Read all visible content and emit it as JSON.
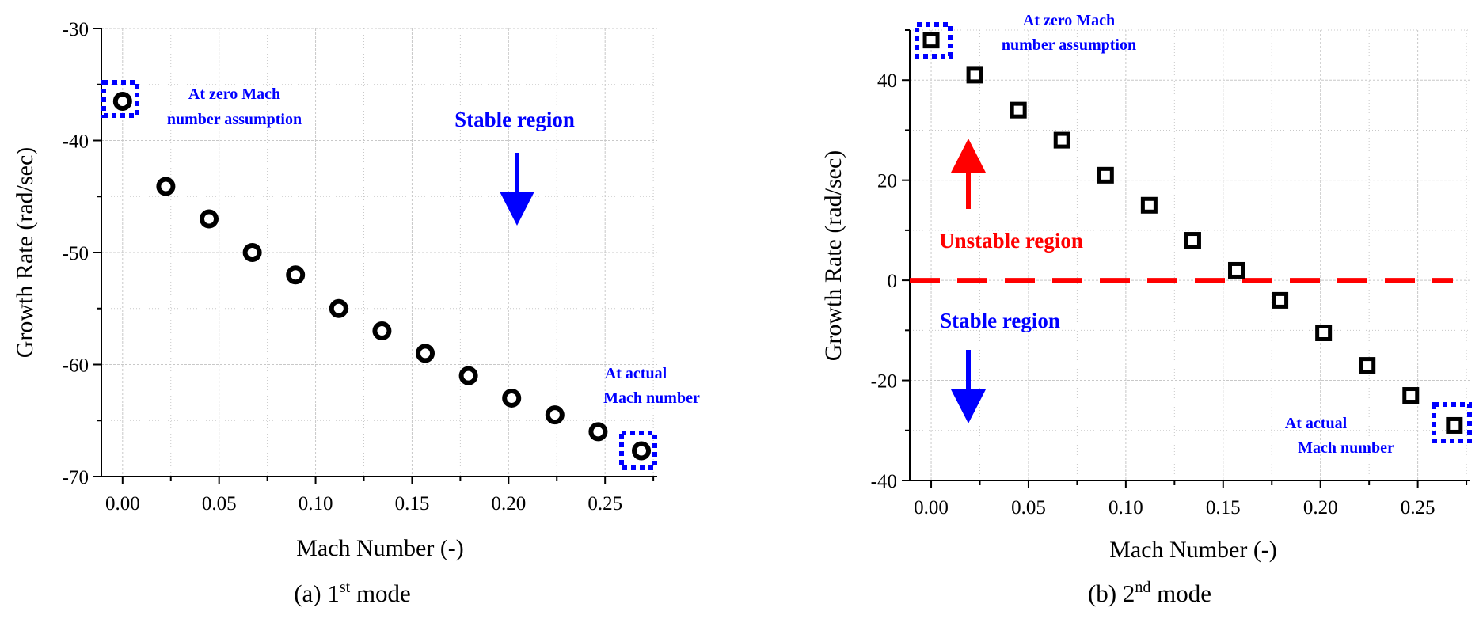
{
  "chart_data": [
    {
      "type": "scatter",
      "caption_prefix": "(a) 1",
      "caption_sup": "st",
      "caption_suffix": " mode",
      "xlabel": "Mach Number (-)",
      "ylabel": "Growth Rate (rad/sec)",
      "xlim": [
        -0.011,
        0.277
      ],
      "ylim": [
        -70,
        -30
      ],
      "x_ticks": [
        0.0,
        0.05,
        0.1,
        0.15,
        0.2,
        0.25
      ],
      "x_tick_labels": [
        "0.00",
        "0.05",
        "0.10",
        "0.15",
        "0.20",
        "0.25"
      ],
      "y_ticks": [
        -70,
        -60,
        -50,
        -40,
        -30
      ],
      "y_tick_labels": [
        "-70",
        "-60",
        "-50",
        "-40",
        "-30"
      ],
      "grid": true,
      "marker": "circle",
      "series": [
        {
          "x": [
            0.0,
            0.0224,
            0.0448,
            0.0672,
            0.0896,
            0.112,
            0.1344,
            0.1568,
            0.1792,
            0.2016,
            0.224,
            0.2464,
            0.2688
          ],
          "y": [
            -36.5,
            -44.1,
            -47.0,
            -50.0,
            -52.0,
            -55.0,
            -57.0,
            -59.0,
            -61.0,
            -63.0,
            -64.5,
            -66.0,
            -67.7
          ]
        }
      ],
      "annotations": {
        "zero_mach": [
          "At zero Mach",
          "number assumption"
        ],
        "actual_mach": [
          "At actual",
          "Mach number"
        ],
        "stable": "Stable region"
      },
      "highlight_color": "#0000ff"
    },
    {
      "type": "scatter",
      "caption_prefix": "(b) 2",
      "caption_sup": "nd",
      "caption_suffix": " mode",
      "xlabel": "Mach Number (-)",
      "ylabel": "Growth Rate (rad/sec)",
      "xlim": [
        -0.011,
        0.277
      ],
      "ylim": [
        -40,
        50
      ],
      "x_ticks": [
        0.0,
        0.05,
        0.1,
        0.15,
        0.2,
        0.25
      ],
      "x_tick_labels": [
        "0.00",
        "0.05",
        "0.10",
        "0.15",
        "0.20",
        "0.25"
      ],
      "y_ticks": [
        -40,
        -20,
        0,
        20,
        40
      ],
      "y_tick_labels": [
        "-40",
        "-20",
        "0",
        "20",
        "40"
      ],
      "grid": true,
      "marker": "square",
      "zero_line_color": "#ff0000",
      "series": [
        {
          "x": [
            0.0,
            0.0224,
            0.0448,
            0.0672,
            0.0896,
            0.112,
            0.1344,
            0.1568,
            0.1792,
            0.2016,
            0.224,
            0.2464,
            0.2688
          ],
          "y": [
            48.0,
            41.0,
            34.0,
            28.0,
            21.0,
            15.0,
            8.0,
            2.0,
            -4.0,
            -10.5,
            -17.0,
            -23.0,
            -29.0
          ]
        }
      ],
      "annotations": {
        "zero_mach": [
          "At zero Mach",
          "number assumption"
        ],
        "actual_mach": [
          "At actual",
          "Mach number"
        ],
        "stable": "Stable region",
        "unstable": "Unstable region"
      },
      "highlight_color": "#0000ff",
      "unstable_color": "#ff0000"
    }
  ]
}
